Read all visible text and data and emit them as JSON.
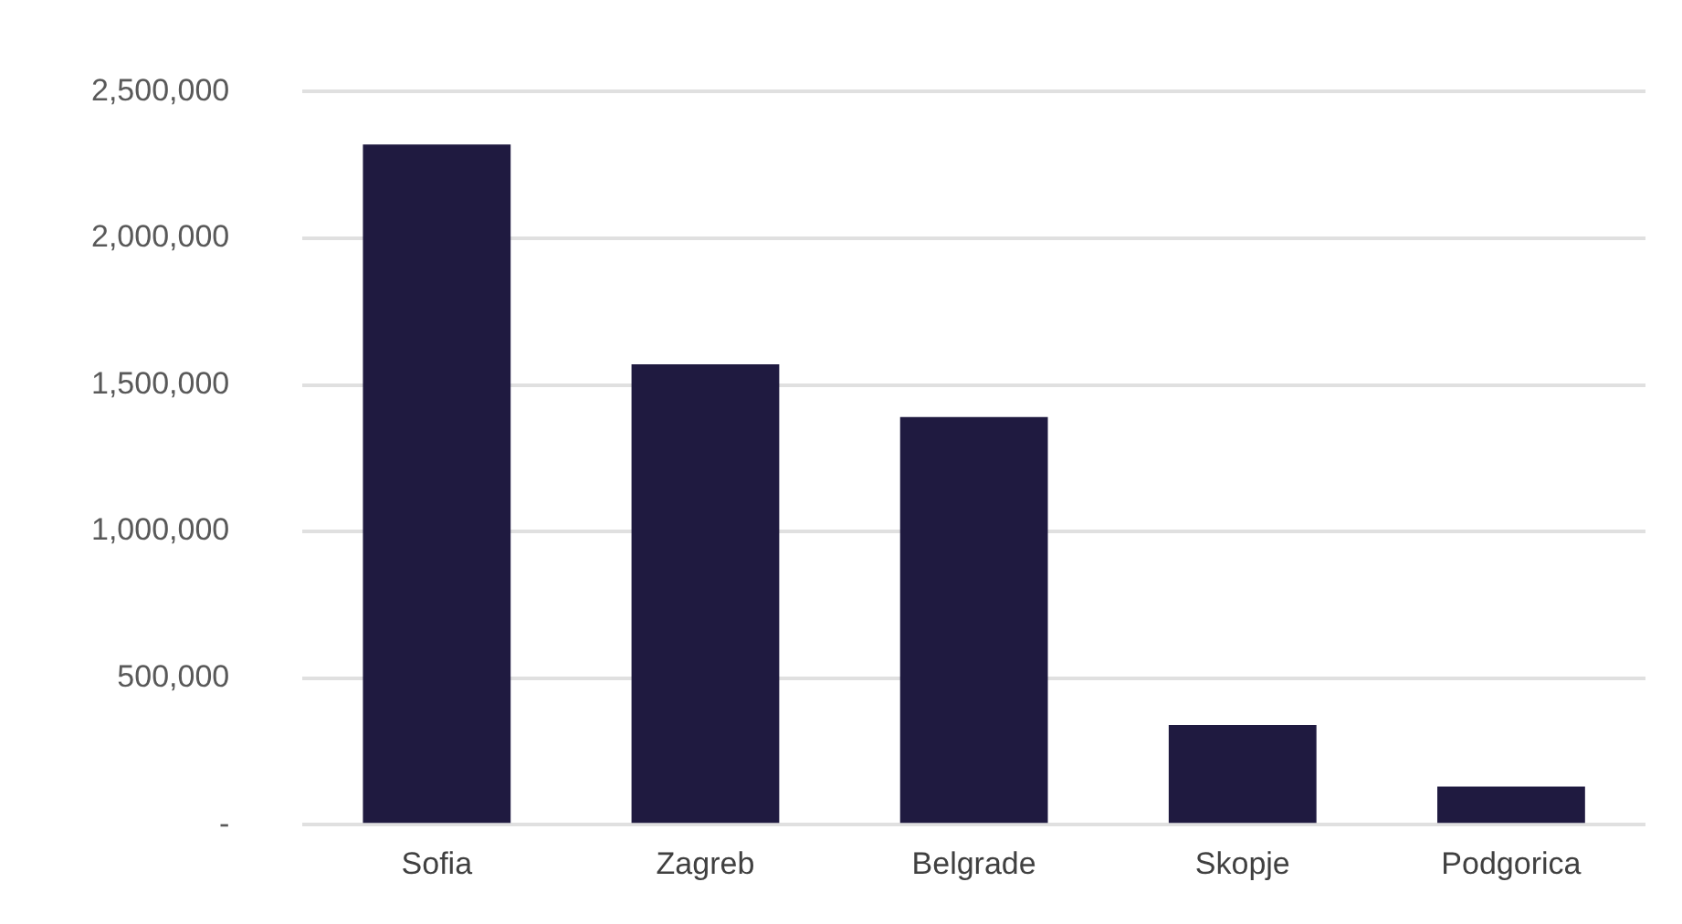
{
  "chart_data": {
    "type": "bar",
    "categories": [
      "Sofia",
      "Zagreb",
      "Belgrade",
      "Skopje",
      "Podgorica"
    ],
    "values": [
      2320000,
      1570000,
      1390000,
      340000,
      130000
    ],
    "color": "#1f1a40",
    "ylim": [
      0,
      2500000
    ],
    "yticks": [
      {
        "value": 0,
        "label": "-"
      },
      {
        "value": 500000,
        "label": "500,000"
      },
      {
        "value": 1000000,
        "label": "1,000,000"
      },
      {
        "value": 1500000,
        "label": "1,500,000"
      },
      {
        "value": 2000000,
        "label": "2,000,000"
      },
      {
        "value": 2500000,
        "label": "2,500,000"
      }
    ],
    "grid": "y"
  }
}
